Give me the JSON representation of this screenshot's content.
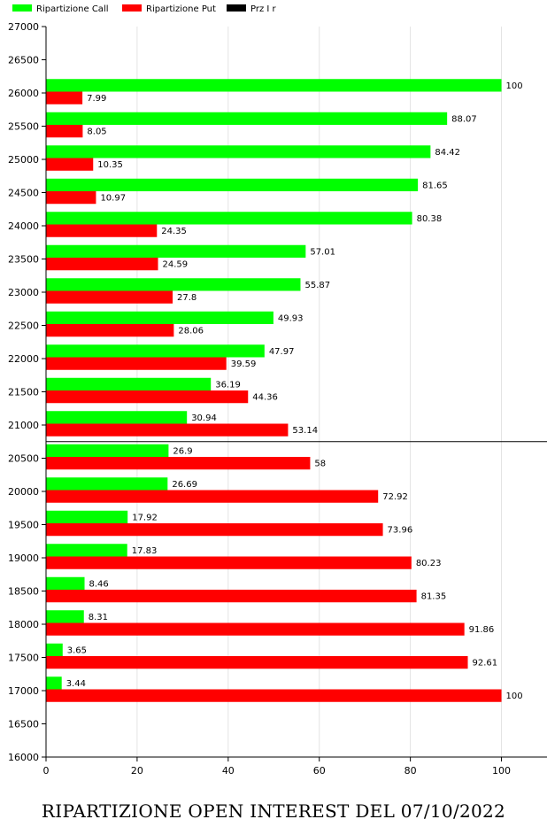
{
  "chart_data": {
    "type": "bar",
    "orientation": "horizontal",
    "title": "RIPARTIZIONE OPEN INTEREST DEL 07/10/2022",
    "categories": [
      17000,
      17500,
      18000,
      18500,
      19000,
      19500,
      20000,
      20500,
      21000,
      21500,
      22000,
      22500,
      23000,
      23500,
      24000,
      24500,
      25000,
      25500,
      26000
    ],
    "series": [
      {
        "name": "Ripartizione Call",
        "color": "#00ff00",
        "values": [
          3.44,
          3.65,
          8.31,
          8.46,
          17.83,
          17.92,
          26.69,
          26.9,
          30.94,
          36.19,
          47.97,
          49.93,
          55.87,
          57.01,
          80.38,
          81.65,
          84.42,
          88.07,
          100
        ]
      },
      {
        "name": "Ripartizione Put",
        "color": "#ff0000",
        "values": [
          100,
          92.61,
          91.86,
          81.35,
          80.23,
          73.96,
          72.92,
          58,
          53.14,
          44.36,
          39.59,
          28.06,
          27.8,
          24.59,
          24.35,
          10.97,
          10.35,
          8.05,
          7.99
        ]
      }
    ],
    "legend_extra": {
      "name": "Prz I r",
      "color": "#000000"
    },
    "reference_line": {
      "value": 20750,
      "color": "#000000"
    },
    "x_axis": {
      "min": 0,
      "max": 110,
      "ticks": [
        0,
        20,
        40,
        60,
        80,
        100
      ]
    },
    "y_axis": {
      "min": 16000,
      "max": 27000,
      "step": 500
    },
    "grid": "vertical",
    "legend": "top-left"
  }
}
